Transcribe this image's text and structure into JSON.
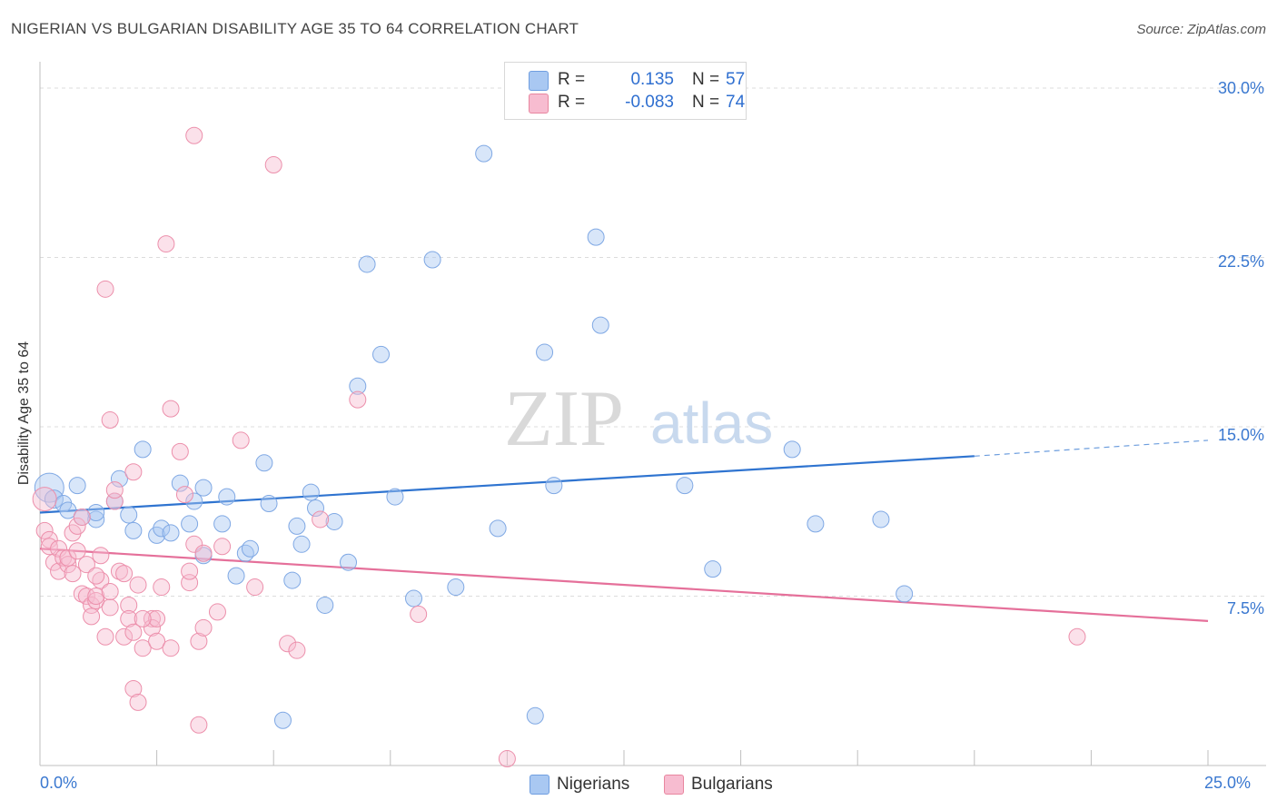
{
  "title": "NIGERIAN VS BULGARIAN DISABILITY AGE 35 TO 64 CORRELATION CHART",
  "source": "Source: ZipAtlas.com",
  "watermark": {
    "zip": "ZIP",
    "atlas": "atlas"
  },
  "legend": {
    "r_label": "R =",
    "n_label": "N =",
    "items": [
      {
        "name": "Nigerians",
        "r": "0.135",
        "n": "57",
        "fill": "#a9c8f2",
        "stroke": "#6f9ee0"
      },
      {
        "name": "Bulgarians",
        "r": "-0.083",
        "n": "74",
        "fill": "#f7bcd0",
        "stroke": "#e8869f"
      }
    ]
  },
  "chart_data": {
    "type": "scatter",
    "title": "NIGERIAN VS BULGARIAN DISABILITY AGE 35 TO 64 CORRELATION CHART",
    "xlabel": "",
    "ylabel": "Disability Age 35 to 64",
    "xlim": [
      0,
      25
    ],
    "ylim": [
      0,
      30
    ],
    "x_tick_labels": [
      "0.0%",
      "25.0%"
    ],
    "y_ticks": [
      7.5,
      15,
      22.5,
      30
    ],
    "y_tick_labels": [
      "7.5%",
      "15.0%",
      "22.5%",
      "30.0%"
    ],
    "grid": true,
    "colors": {
      "nigerians": "#2f74d0",
      "bulgarians": "#e5709a"
    },
    "series": [
      {
        "name": "Nigerians",
        "r": 0.135,
        "n": 57,
        "trend": {
          "x0": 0,
          "y0": 11.2,
          "x1": 20,
          "y1": 13.7,
          "dash_to_x": 25,
          "dash_to_y": 14.4
        },
        "points": [
          [
            0.2,
            12.3,
            16
          ],
          [
            0.3,
            11.8,
            10
          ],
          [
            0.5,
            11.6,
            9
          ],
          [
            0.6,
            11.3,
            9
          ],
          [
            0.8,
            12.4,
            9
          ],
          [
            0.9,
            11.0,
            9
          ],
          [
            1.2,
            10.9,
            9
          ],
          [
            1.2,
            11.2,
            9
          ],
          [
            1.6,
            11.7,
            9
          ],
          [
            1.7,
            12.7,
            9
          ],
          [
            1.9,
            11.1,
            9
          ],
          [
            2.0,
            10.4,
            9
          ],
          [
            2.2,
            14.0,
            9
          ],
          [
            2.5,
            10.2,
            9
          ],
          [
            2.6,
            10.5,
            9
          ],
          [
            2.8,
            10.3,
            9
          ],
          [
            3.0,
            12.5,
            9
          ],
          [
            3.2,
            10.7,
            9
          ],
          [
            3.3,
            11.7,
            9
          ],
          [
            3.5,
            12.3,
            9
          ],
          [
            3.5,
            9.3,
            9
          ],
          [
            3.9,
            10.7,
            9
          ],
          [
            4.0,
            11.9,
            9
          ],
          [
            4.2,
            8.4,
            9
          ],
          [
            4.4,
            9.4,
            9
          ],
          [
            4.5,
            9.6,
            9
          ],
          [
            4.8,
            13.4,
            9
          ],
          [
            4.9,
            11.6,
            9
          ],
          [
            5.2,
            2.0,
            9
          ],
          [
            5.4,
            8.2,
            9
          ],
          [
            5.5,
            10.6,
            9
          ],
          [
            5.6,
            9.8,
            9
          ],
          [
            5.8,
            12.1,
            9
          ],
          [
            5.9,
            11.4,
            9
          ],
          [
            6.1,
            7.1,
            9
          ],
          [
            6.3,
            10.8,
            9
          ],
          [
            6.6,
            9.0,
            9
          ],
          [
            6.8,
            16.8,
            9
          ],
          [
            7.0,
            22.2,
            9
          ],
          [
            7.3,
            18.2,
            9
          ],
          [
            7.6,
            11.9,
            9
          ],
          [
            8.0,
            7.4,
            9
          ],
          [
            8.4,
            22.4,
            9
          ],
          [
            8.9,
            7.9,
            9
          ],
          [
            9.5,
            27.1,
            9
          ],
          [
            9.8,
            10.5,
            9
          ],
          [
            10.6,
            2.2,
            9
          ],
          [
            10.8,
            18.3,
            9
          ],
          [
            11.0,
            12.4,
            9
          ],
          [
            11.9,
            23.4,
            9
          ],
          [
            12.0,
            19.5,
            9
          ],
          [
            13.8,
            12.4,
            9
          ],
          [
            14.4,
            8.7,
            9
          ],
          [
            16.1,
            14.0,
            9
          ],
          [
            16.6,
            10.7,
            9
          ],
          [
            18.0,
            10.9,
            9
          ],
          [
            18.5,
            7.6,
            9
          ]
        ]
      },
      {
        "name": "Bulgarians",
        "r": -0.083,
        "n": 74,
        "trend": {
          "x0": 0,
          "y0": 9.6,
          "x1": 25,
          "y1": 6.4
        },
        "points": [
          [
            0.1,
            11.8,
            13
          ],
          [
            0.1,
            10.4,
            9
          ],
          [
            0.2,
            10.0,
            9
          ],
          [
            0.2,
            9.7,
            9
          ],
          [
            0.3,
            9.0,
            9
          ],
          [
            0.4,
            8.6,
            9
          ],
          [
            0.4,
            9.6,
            9
          ],
          [
            0.5,
            9.2,
            9
          ],
          [
            0.6,
            8.9,
            9
          ],
          [
            0.6,
            9.2,
            9
          ],
          [
            0.7,
            10.3,
            9
          ],
          [
            0.7,
            8.5,
            9
          ],
          [
            0.8,
            10.6,
            9
          ],
          [
            0.8,
            9.5,
            9
          ],
          [
            0.9,
            11.0,
            9
          ],
          [
            0.9,
            7.6,
            9
          ],
          [
            1.0,
            8.9,
            9
          ],
          [
            1.0,
            7.5,
            9
          ],
          [
            1.1,
            7.1,
            9
          ],
          [
            1.1,
            6.6,
            9
          ],
          [
            1.2,
            7.3,
            9
          ],
          [
            1.2,
            7.5,
            9
          ],
          [
            1.3,
            9.3,
            9
          ],
          [
            1.3,
            8.2,
            9
          ],
          [
            1.4,
            5.7,
            9
          ],
          [
            1.4,
            21.1,
            9
          ],
          [
            1.5,
            15.3,
            9
          ],
          [
            1.5,
            7.0,
            9
          ],
          [
            1.5,
            7.7,
            9
          ],
          [
            1.6,
            11.7,
            9
          ],
          [
            1.6,
            12.2,
            9
          ],
          [
            1.7,
            8.6,
            9
          ],
          [
            1.8,
            8.5,
            9
          ],
          [
            1.8,
            5.7,
            9
          ],
          [
            1.9,
            7.1,
            9
          ],
          [
            1.9,
            6.5,
            9
          ],
          [
            2.0,
            13.0,
            9
          ],
          [
            2.0,
            5.9,
            9
          ],
          [
            2.0,
            3.4,
            9
          ],
          [
            2.1,
            8.0,
            9
          ],
          [
            2.1,
            2.8,
            9
          ],
          [
            2.2,
            5.2,
            9
          ],
          [
            2.4,
            6.5,
            9
          ],
          [
            2.4,
            6.1,
            9
          ],
          [
            2.5,
            6.5,
            9
          ],
          [
            2.5,
            5.5,
            9
          ],
          [
            2.6,
            7.9,
            9
          ],
          [
            2.7,
            23.1,
            9
          ],
          [
            2.8,
            15.8,
            9
          ],
          [
            2.8,
            5.2,
            9
          ],
          [
            3.0,
            13.9,
            9
          ],
          [
            3.1,
            12.0,
            9
          ],
          [
            3.2,
            8.1,
            9
          ],
          [
            3.2,
            8.6,
            9
          ],
          [
            3.3,
            9.8,
            9
          ],
          [
            3.3,
            27.9,
            9
          ],
          [
            3.4,
            1.8,
            9
          ],
          [
            3.4,
            5.5,
            9
          ],
          [
            3.5,
            9.4,
            9
          ],
          [
            3.5,
            6.1,
            9
          ],
          [
            3.8,
            6.8,
            9
          ],
          [
            3.9,
            9.7,
            9
          ],
          [
            4.3,
            14.4,
            9
          ],
          [
            4.6,
            7.9,
            9
          ],
          [
            5.0,
            26.6,
            9
          ],
          [
            5.3,
            5.4,
            9
          ],
          [
            5.5,
            5.1,
            9
          ],
          [
            6.0,
            10.9,
            9
          ],
          [
            6.8,
            16.2,
            9
          ],
          [
            8.1,
            6.7,
            9
          ],
          [
            10.0,
            0.3,
            9
          ],
          [
            22.2,
            5.7,
            9
          ],
          [
            1.2,
            8.4,
            9
          ],
          [
            2.2,
            6.5,
            9
          ]
        ]
      }
    ]
  }
}
